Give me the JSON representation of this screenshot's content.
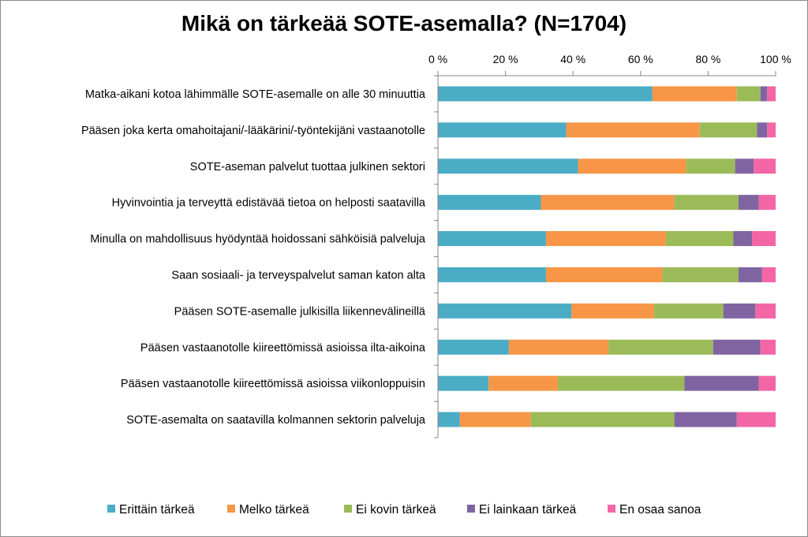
{
  "chart_data": {
    "type": "bar",
    "stacked": true,
    "orientation": "horizontal",
    "percent": true,
    "title": "Mikä on tärkeää SOTE-asemalla? (N=1704)",
    "xlim": [
      0,
      100
    ],
    "xticks": [
      "0 %",
      "20 %",
      "40 %",
      "60 %",
      "80 %",
      "100 %"
    ],
    "xtick_values": [
      0,
      20,
      40,
      60,
      80,
      100
    ],
    "legend_position": "bottom",
    "categories": [
      "Matka-aikani kotoa lähimmälle SOTE-asemalle on alle 30 minuuttia",
      "Pääsen joka kerta omahoitajani/-lääkärini/-työntekijäni vastaanotolle",
      "SOTE-aseman palvelut tuottaa julkinen sektori",
      "Hyvinvointia ja terveyttä edistävää tietoa on helposti saatavilla",
      "Minulla on mahdollisuus hyödyntää hoidossani sähköisiä palveluja",
      "Saan sosiaali- ja terveyspalvelut saman katon alta",
      "Pääsen SOTE-asemalle julkisilla liikennevälineillä",
      "Pääsen vastaanotolle kiireettömissä asioissa ilta-aikoina",
      "Pääsen vastaanotolle kiireettömissä asioissa viikonloppuisin",
      "SOTE-asemalta on saatavilla kolmannen sektorin palveluja"
    ],
    "series": [
      {
        "name": "Erittäin tärkeä",
        "color": "#4bacc6",
        "values": [
          63.5,
          38,
          41.5,
          30.5,
          32,
          32,
          39.5,
          21,
          15,
          6.5
        ]
      },
      {
        "name": "Melko tärkeä",
        "color": "#f79646",
        "values": [
          25,
          39.5,
          32,
          39.5,
          35.5,
          34.5,
          24.5,
          29.5,
          20.5,
          21
        ]
      },
      {
        "name": "Ei kovin tärkeä",
        "color": "#9bbb59",
        "values": [
          7,
          17,
          14.5,
          19,
          20,
          22.5,
          20.5,
          31,
          37.5,
          42.5
        ]
      },
      {
        "name": "Ei lainkaan tärkeä",
        "color": "#8064a2",
        "values": [
          2,
          3,
          5.5,
          6,
          5.5,
          7,
          9.5,
          14,
          22,
          18.5
        ]
      },
      {
        "name": "En osaa sanoa",
        "color": "#f366a6",
        "values": [
          2.5,
          2.5,
          6.5,
          5,
          7,
          4,
          6,
          4.5,
          5,
          11.5
        ]
      }
    ]
  }
}
